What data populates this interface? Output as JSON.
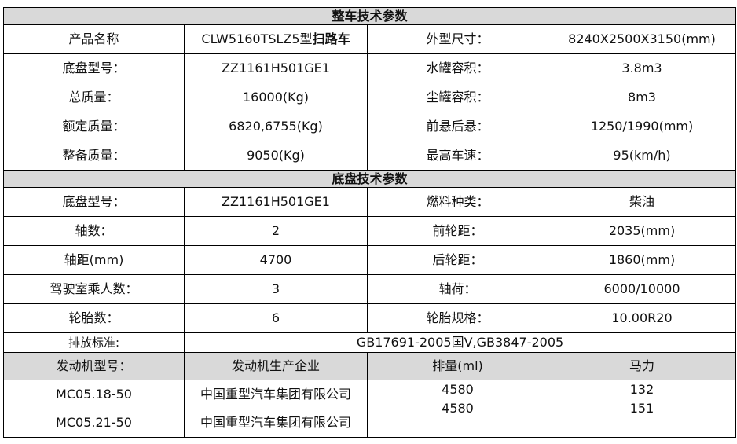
{
  "vehicle_section": {
    "title": "整车技术参数",
    "rows": [
      [
        "产品名称",
        "CLW5160TSLZ5型",
        "外型尺寸：",
        "8240X2500X3150(mm)"
      ],
      [
        "底盘型号：",
        "ZZ1161H501GE1",
        "水罐容积：",
        "3.8m3"
      ],
      [
        "总质量：",
        "16000(Kg)",
        "尘罐容积：",
        "8m3"
      ],
      [
        "额定质量：",
        "6820,6755(Kg)",
        "前悬后悬：",
        "1250/1990(mm)"
      ],
      [
        "整备质量：",
        "9050(Kg)",
        "最高车速：",
        "95(km/h)"
      ]
    ],
    "product_name_bold": "扫路车"
  },
  "chassis_section": {
    "title": "底盘技术参数",
    "rows": [
      [
        "底盘型号：",
        "ZZ1161H501GE1",
        "燃料种类：",
        "柴油"
      ],
      [
        "轴数：",
        "2",
        "前轮距：",
        "2035(mm)"
      ],
      [
        "轴距(mm)",
        "4700",
        "后轮距：",
        "1860(mm)"
      ],
      [
        "驾驶室乘人数：",
        "3",
        "轴荷：",
        "6000/10000"
      ],
      [
        "轮胎数：",
        "6",
        "轮胎规格：",
        "10.00R20"
      ]
    ],
    "emission_label": "排放标准:",
    "emission_value": "GB17691-2005国Ⅴ,GB3847-2005"
  },
  "engine": {
    "headers": [
      "发动机型号：",
      "发动机生产企业",
      "排量(ml)",
      "马力"
    ],
    "models": [
      "MC05.18-50",
      "MC05.21-50"
    ],
    "makers": [
      "中国重型汽车集团有限公司",
      "中国重型汽车集团有限公司"
    ],
    "displacement": [
      "4580",
      "4580"
    ],
    "power": [
      "132",
      "151"
    ]
  }
}
